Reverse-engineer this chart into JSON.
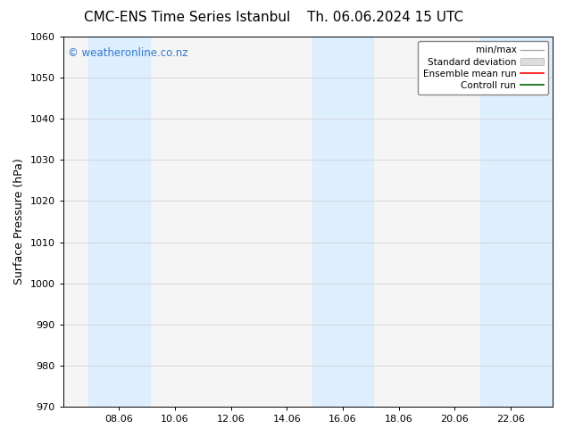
{
  "title_left": "CMC-ENS Time Series Istanbul",
  "title_right": "Th. 06.06.2024 15 UTC",
  "ylabel": "Surface Pressure (hPa)",
  "ylim": [
    970,
    1060
  ],
  "yticks": [
    970,
    980,
    990,
    1000,
    1010,
    1020,
    1030,
    1040,
    1050,
    1060
  ],
  "xtick_labels": [
    "08.06",
    "10.06",
    "12.06",
    "14.06",
    "16.06",
    "18.06",
    "20.06",
    "22.06"
  ],
  "xtick_positions": [
    2,
    4,
    6,
    8,
    10,
    12,
    14,
    16
  ],
  "x_min": 0,
  "x_max": 17.5,
  "shaded_bands": [
    {
      "x_start": 0.9,
      "x_end": 3.1,
      "color": "#ddeeff"
    },
    {
      "x_start": 8.9,
      "x_end": 11.1,
      "color": "#ddeeff"
    },
    {
      "x_start": 14.9,
      "x_end": 17.5,
      "color": "#ddeeff"
    }
  ],
  "watermark": "© weatheronline.co.nz",
  "watermark_color": "#3377cc",
  "bg_color": "#ffffff",
  "plot_bg_color": "#f5f5f5",
  "grid_color": "#cccccc",
  "title_fontsize": 11,
  "tick_fontsize": 8,
  "label_fontsize": 9
}
